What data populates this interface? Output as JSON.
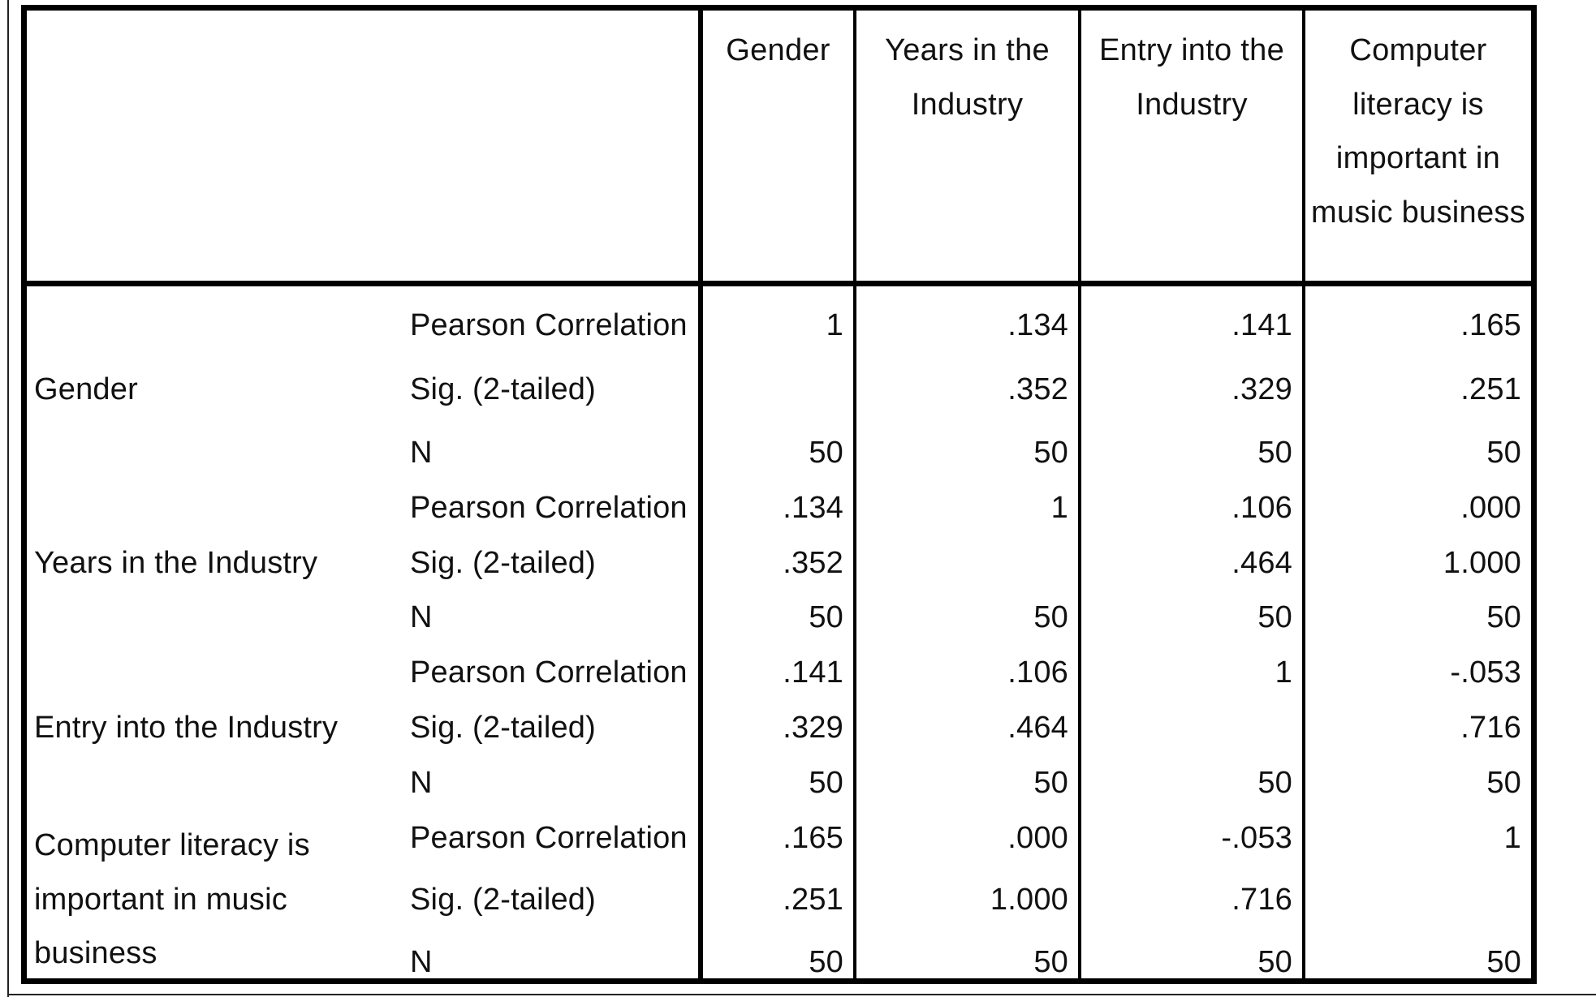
{
  "columns": [
    "Gender",
    "Years in the Industry",
    "Entry into the Industry",
    "Computer literacy is important in music business"
  ],
  "row_groups": [
    {
      "label": "Gender",
      "rows": [
        {
          "stat": "Pearson Correlation",
          "values": [
            "1",
            ".134",
            ".141",
            ".165"
          ]
        },
        {
          "stat": "Sig. (2-tailed)",
          "values": [
            "",
            ".352",
            ".329",
            ".251"
          ]
        },
        {
          "stat": "N",
          "values": [
            "50",
            "50",
            "50",
            "50"
          ]
        }
      ]
    },
    {
      "label": "Years in the Industry",
      "rows": [
        {
          "stat": "Pearson Correlation",
          "values": [
            ".134",
            "1",
            ".106",
            ".000"
          ]
        },
        {
          "stat": "Sig. (2-tailed)",
          "values": [
            ".352",
            "",
            ".464",
            "1.000"
          ]
        },
        {
          "stat": "N",
          "values": [
            "50",
            "50",
            "50",
            "50"
          ]
        }
      ]
    },
    {
      "label": "Entry into the Industry",
      "rows": [
        {
          "stat": "Pearson Correlation",
          "values": [
            ".141",
            ".106",
            "1",
            "-.053"
          ]
        },
        {
          "stat": "Sig. (2-tailed)",
          "values": [
            ".329",
            ".464",
            "",
            ".716"
          ]
        },
        {
          "stat": "N",
          "values": [
            "50",
            "50",
            "50",
            "50"
          ]
        }
      ]
    },
    {
      "label": "Computer literacy is important in music business",
      "rows": [
        {
          "stat": "Pearson Correlation",
          "values": [
            ".165",
            ".000",
            "-.053",
            "1"
          ]
        },
        {
          "stat": "Sig. (2-tailed)",
          "values": [
            ".251",
            "1.000",
            ".716",
            ""
          ]
        },
        {
          "stat": "N",
          "values": [
            "50",
            "50",
            "50",
            "50"
          ]
        }
      ]
    }
  ]
}
